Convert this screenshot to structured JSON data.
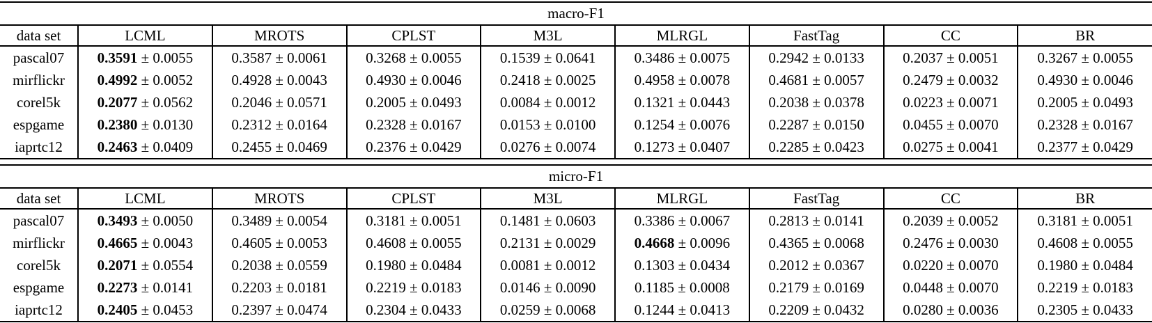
{
  "figure": {
    "type": "results-tables",
    "text_color": "#000000",
    "rule_color": "#000000",
    "background_color": "#ffffff",
    "pm_symbol": "±"
  },
  "tables": [
    {
      "title": "macro-F1",
      "columns": [
        "data set",
        "LCML",
        "MROTS",
        "CPLST",
        "M3L",
        "MLRGL",
        "FastTag",
        "CC",
        "BR"
      ],
      "rows": [
        {
          "dataset": "pascal07",
          "cells": [
            {
              "mean": "0.3591",
              "std": "0.0055",
              "bold": true
            },
            {
              "mean": "0.3587",
              "std": "0.0061",
              "bold": false
            },
            {
              "mean": "0.3268",
              "std": "0.0055",
              "bold": false
            },
            {
              "mean": "0.1539",
              "std": "0.0641",
              "bold": false
            },
            {
              "mean": "0.3486",
              "std": "0.0075",
              "bold": false
            },
            {
              "mean": "0.2942",
              "std": "0.0133",
              "bold": false
            },
            {
              "mean": "0.2037",
              "std": "0.0051",
              "bold": false
            },
            {
              "mean": "0.3267",
              "std": "0.0055",
              "bold": false
            }
          ]
        },
        {
          "dataset": "mirflickr",
          "cells": [
            {
              "mean": "0.4992",
              "std": "0.0052",
              "bold": true
            },
            {
              "mean": "0.4928",
              "std": "0.0043",
              "bold": false
            },
            {
              "mean": "0.4930",
              "std": "0.0046",
              "bold": false
            },
            {
              "mean": "0.2418",
              "std": "0.0025",
              "bold": false
            },
            {
              "mean": "0.4958",
              "std": "0.0078",
              "bold": false
            },
            {
              "mean": "0.4681",
              "std": "0.0057",
              "bold": false
            },
            {
              "mean": "0.2479",
              "std": "0.0032",
              "bold": false
            },
            {
              "mean": "0.4930",
              "std": "0.0046",
              "bold": false
            }
          ]
        },
        {
          "dataset": "corel5k",
          "cells": [
            {
              "mean": "0.2077",
              "std": "0.0562",
              "bold": true
            },
            {
              "mean": "0.2046",
              "std": "0.0571",
              "bold": false
            },
            {
              "mean": "0.2005",
              "std": "0.0493",
              "bold": false
            },
            {
              "mean": "0.0084",
              "std": "0.0012",
              "bold": false
            },
            {
              "mean": "0.1321",
              "std": "0.0443",
              "bold": false
            },
            {
              "mean": "0.2038",
              "std": "0.0378",
              "bold": false
            },
            {
              "mean": "0.0223",
              "std": "0.0071",
              "bold": false
            },
            {
              "mean": "0.2005",
              "std": "0.0493",
              "bold": false
            }
          ]
        },
        {
          "dataset": "espgame",
          "cells": [
            {
              "mean": "0.2380",
              "std": "0.0130",
              "bold": true
            },
            {
              "mean": "0.2312",
              "std": "0.0164",
              "bold": false
            },
            {
              "mean": "0.2328",
              "std": "0.0167",
              "bold": false
            },
            {
              "mean": "0.0153",
              "std": "0.0100",
              "bold": false
            },
            {
              "mean": "0.1254",
              "std": "0.0076",
              "bold": false
            },
            {
              "mean": "0.2287",
              "std": "0.0150",
              "bold": false
            },
            {
              "mean": "0.0455",
              "std": "0.0070",
              "bold": false
            },
            {
              "mean": "0.2328",
              "std": "0.0167",
              "bold": false
            }
          ]
        },
        {
          "dataset": "iaprtc12",
          "cells": [
            {
              "mean": "0.2463",
              "std": "0.0409",
              "bold": true
            },
            {
              "mean": "0.2455",
              "std": "0.0469",
              "bold": false
            },
            {
              "mean": "0.2376",
              "std": "0.0429",
              "bold": false
            },
            {
              "mean": "0.0276",
              "std": "0.0074",
              "bold": false
            },
            {
              "mean": "0.1273",
              "std": "0.0407",
              "bold": false
            },
            {
              "mean": "0.2285",
              "std": "0.0423",
              "bold": false
            },
            {
              "mean": "0.0275",
              "std": "0.0041",
              "bold": false
            },
            {
              "mean": "0.2377",
              "std": "0.0429",
              "bold": false
            }
          ]
        }
      ]
    },
    {
      "title": "micro-F1",
      "columns": [
        "data set",
        "LCML",
        "MROTS",
        "CPLST",
        "M3L",
        "MLRGL",
        "FastTag",
        "CC",
        "BR"
      ],
      "rows": [
        {
          "dataset": "pascal07",
          "cells": [
            {
              "mean": "0.3493",
              "std": "0.0050",
              "bold": true
            },
            {
              "mean": "0.3489",
              "std": "0.0054",
              "bold": false
            },
            {
              "mean": "0.3181",
              "std": "0.0051",
              "bold": false
            },
            {
              "mean": "0.1481",
              "std": "0.0603",
              "bold": false
            },
            {
              "mean": "0.3386",
              "std": "0.0067",
              "bold": false
            },
            {
              "mean": "0.2813",
              "std": "0.0141",
              "bold": false
            },
            {
              "mean": "0.2039",
              "std": "0.0052",
              "bold": false
            },
            {
              "mean": "0.3181",
              "std": "0.0051",
              "bold": false
            }
          ]
        },
        {
          "dataset": "mirflickr",
          "cells": [
            {
              "mean": "0.4665",
              "std": "0.0043",
              "bold": true
            },
            {
              "mean": "0.4605",
              "std": "0.0053",
              "bold": false
            },
            {
              "mean": "0.4608",
              "std": "0.0055",
              "bold": false
            },
            {
              "mean": "0.2131",
              "std": "0.0029",
              "bold": false
            },
            {
              "mean": "0.4668",
              "std": "0.0096",
              "bold": true
            },
            {
              "mean": "0.4365",
              "std": "0.0068",
              "bold": false
            },
            {
              "mean": "0.2476",
              "std": "0.0030",
              "bold": false
            },
            {
              "mean": "0.4608",
              "std": "0.0055",
              "bold": false
            }
          ]
        },
        {
          "dataset": "corel5k",
          "cells": [
            {
              "mean": "0.2071",
              "std": "0.0554",
              "bold": true
            },
            {
              "mean": "0.2038",
              "std": "0.0559",
              "bold": false
            },
            {
              "mean": "0.1980",
              "std": "0.0484",
              "bold": false
            },
            {
              "mean": "0.0081",
              "std": "0.0012",
              "bold": false
            },
            {
              "mean": "0.1303",
              "std": "0.0434",
              "bold": false
            },
            {
              "mean": "0.2012",
              "std": "0.0367",
              "bold": false
            },
            {
              "mean": "0.0220",
              "std": "0.0070",
              "bold": false
            },
            {
              "mean": "0.1980",
              "std": "0.0484",
              "bold": false
            }
          ]
        },
        {
          "dataset": "espgame",
          "cells": [
            {
              "mean": "0.2273",
              "std": "0.0141",
              "bold": true
            },
            {
              "mean": "0.2203",
              "std": "0.0181",
              "bold": false
            },
            {
              "mean": "0.2219",
              "std": "0.0183",
              "bold": false
            },
            {
              "mean": "0.0146",
              "std": "0.0090",
              "bold": false
            },
            {
              "mean": "0.1185",
              "std": "0.0008",
              "bold": false
            },
            {
              "mean": "0.2179",
              "std": "0.0169",
              "bold": false
            },
            {
              "mean": "0.0448",
              "std": "0.0070",
              "bold": false
            },
            {
              "mean": "0.2219",
              "std": "0.0183",
              "bold": false
            }
          ]
        },
        {
          "dataset": "iaprtc12",
          "cells": [
            {
              "mean": "0.2405",
              "std": "0.0453",
              "bold": true
            },
            {
              "mean": "0.2397",
              "std": "0.0474",
              "bold": false
            },
            {
              "mean": "0.2304",
              "std": "0.0433",
              "bold": false
            },
            {
              "mean": "0.0259",
              "std": "0.0068",
              "bold": false
            },
            {
              "mean": "0.1244",
              "std": "0.0413",
              "bold": false
            },
            {
              "mean": "0.2209",
              "std": "0.0432",
              "bold": false
            },
            {
              "mean": "0.0280",
              "std": "0.0036",
              "bold": false
            },
            {
              "mean": "0.2305",
              "std": "0.0433",
              "bold": false
            }
          ]
        }
      ]
    }
  ]
}
